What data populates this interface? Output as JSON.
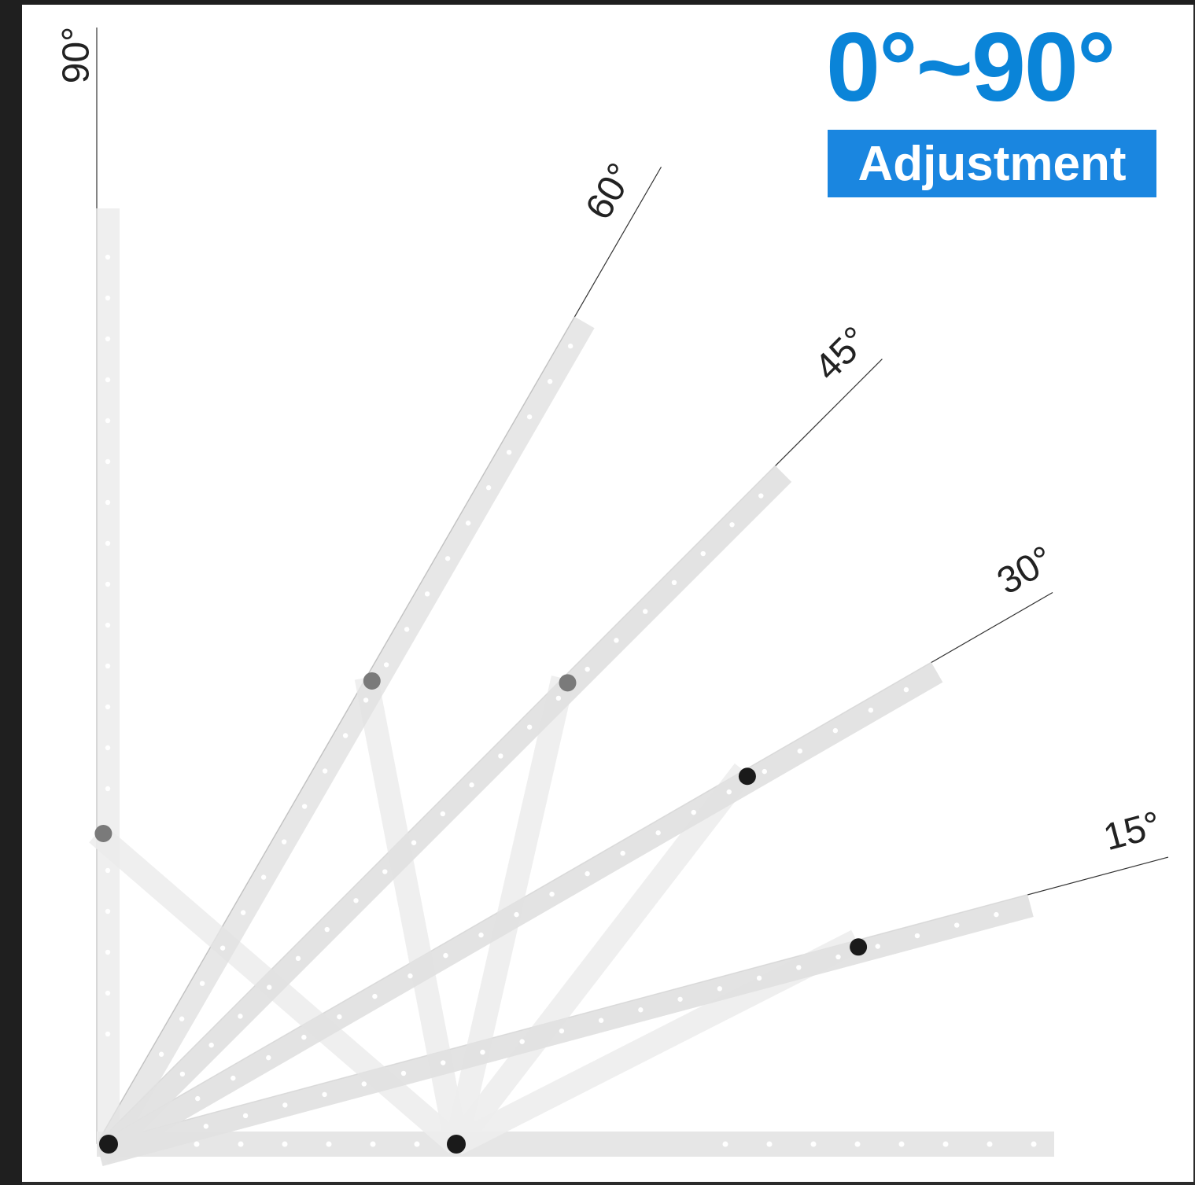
{
  "header": {
    "range": "0°~90°",
    "badge": "Adjustment"
  },
  "angles": [
    {
      "deg": 90,
      "label": "90°"
    },
    {
      "deg": 60,
      "label": "60°"
    },
    {
      "deg": 45,
      "label": "45°"
    },
    {
      "deg": 30,
      "label": "30°"
    },
    {
      "deg": 15,
      "label": "15°"
    }
  ],
  "colors": {
    "accent": "#0a84d8",
    "badge": "#1a86e0",
    "bracket": "#e4e4e4",
    "pivot": "#1a1a1a"
  }
}
